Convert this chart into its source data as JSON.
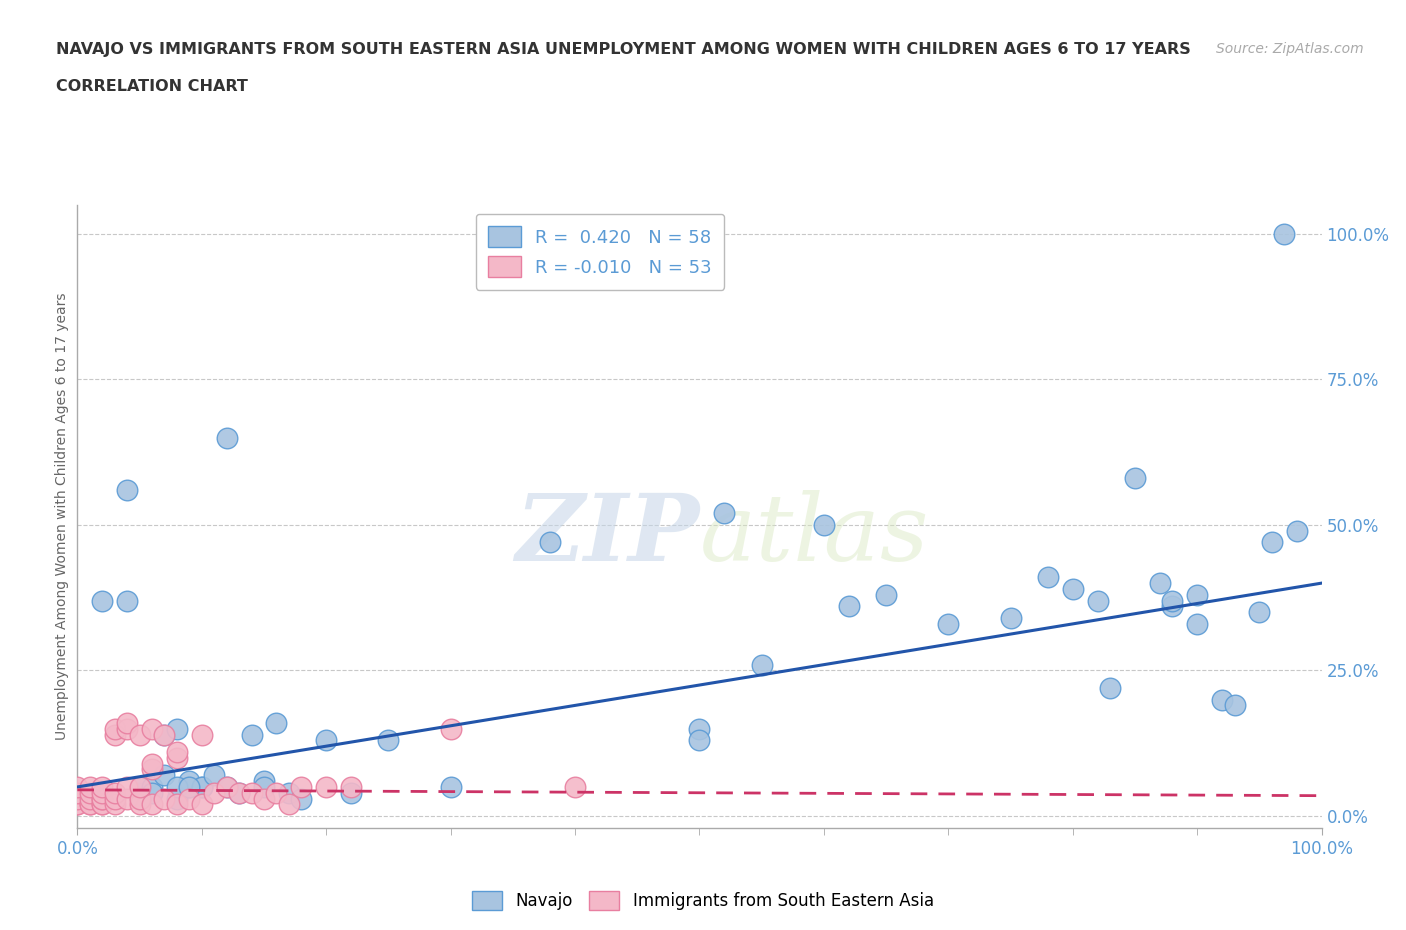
{
  "title_line1": "NAVAJO VS IMMIGRANTS FROM SOUTH EASTERN ASIA UNEMPLOYMENT AMONG WOMEN WITH CHILDREN AGES 6 TO 17 YEARS",
  "title_line2": "CORRELATION CHART",
  "source": "Source: ZipAtlas.com",
  "ylabel": "Unemployment Among Women with Children Ages 6 to 17 years",
  "xlim": [
    0,
    1
  ],
  "ylim": [
    -0.02,
    1.05
  ],
  "xtick_labels": [
    "0.0%",
    "100.0%"
  ],
  "ytick_labels": [
    "0.0%",
    "25.0%",
    "50.0%",
    "75.0%",
    "100.0%"
  ],
  "ytick_positions": [
    0,
    0.25,
    0.5,
    0.75,
    1.0
  ],
  "navajo_R": 0.42,
  "navajo_N": 58,
  "sea_R": -0.01,
  "sea_N": 53,
  "navajo_color": "#a8c4e0",
  "navajo_edge_color": "#5b9bd5",
  "sea_color": "#f4b8c8",
  "sea_edge_color": "#e87fa0",
  "trend_navajo_color": "#2255aa",
  "trend_sea_color": "#cc3366",
  "watermark_zip": "ZIP",
  "watermark_atlas": "atlas",
  "background_color": "#ffffff",
  "grid_color": "#c8c8c8",
  "title_color": "#333333",
  "label_color": "#5b9bd5",
  "navajo_x": [
    0.02,
    0.05,
    0.05,
    0.06,
    0.06,
    0.07,
    0.07,
    0.08,
    0.08,
    0.09,
    0.09,
    0.1,
    0.1,
    0.11,
    0.12,
    0.13,
    0.14,
    0.15,
    0.15,
    0.16,
    0.17,
    0.18,
    0.2,
    0.22,
    0.25,
    0.3,
    0.38,
    0.5,
    0.5,
    0.52,
    0.55,
    0.6,
    0.62,
    0.65,
    0.7,
    0.75,
    0.78,
    0.8,
    0.82,
    0.83,
    0.85,
    0.87,
    0.88,
    0.88,
    0.9,
    0.9,
    0.92,
    0.93,
    0.95,
    0.96,
    0.97,
    0.98,
    0.04,
    0.04,
    0.05,
    0.08,
    0.09,
    0.12
  ],
  "navajo_y": [
    0.37,
    0.04,
    0.05,
    0.05,
    0.04,
    0.07,
    0.14,
    0.15,
    0.03,
    0.05,
    0.06,
    0.05,
    0.05,
    0.07,
    0.65,
    0.04,
    0.14,
    0.06,
    0.05,
    0.16,
    0.04,
    0.03,
    0.13,
    0.04,
    0.13,
    0.05,
    0.47,
    0.15,
    0.13,
    0.52,
    0.26,
    0.5,
    0.36,
    0.38,
    0.33,
    0.34,
    0.41,
    0.39,
    0.37,
    0.22,
    0.58,
    0.4,
    0.36,
    0.37,
    0.33,
    0.38,
    0.2,
    0.19,
    0.35,
    0.47,
    1.0,
    0.49,
    0.37,
    0.56,
    0.03,
    0.05,
    0.05,
    0.05
  ],
  "sea_x": [
    0.0,
    0.0,
    0.0,
    0.0,
    0.0,
    0.01,
    0.01,
    0.01,
    0.01,
    0.01,
    0.02,
    0.02,
    0.02,
    0.02,
    0.02,
    0.02,
    0.03,
    0.03,
    0.03,
    0.03,
    0.03,
    0.04,
    0.04,
    0.04,
    0.04,
    0.05,
    0.05,
    0.05,
    0.05,
    0.06,
    0.06,
    0.06,
    0.06,
    0.07,
    0.07,
    0.08,
    0.08,
    0.08,
    0.09,
    0.1,
    0.1,
    0.11,
    0.12,
    0.13,
    0.14,
    0.15,
    0.16,
    0.17,
    0.18,
    0.2,
    0.22,
    0.3,
    0.4
  ],
  "sea_y": [
    0.02,
    0.02,
    0.03,
    0.04,
    0.05,
    0.02,
    0.02,
    0.03,
    0.04,
    0.05,
    0.02,
    0.02,
    0.03,
    0.03,
    0.04,
    0.05,
    0.02,
    0.03,
    0.04,
    0.14,
    0.15,
    0.03,
    0.05,
    0.15,
    0.16,
    0.02,
    0.03,
    0.05,
    0.14,
    0.02,
    0.08,
    0.09,
    0.15,
    0.03,
    0.14,
    0.02,
    0.1,
    0.11,
    0.03,
    0.02,
    0.14,
    0.04,
    0.05,
    0.04,
    0.04,
    0.03,
    0.04,
    0.02,
    0.05,
    0.05,
    0.05,
    0.15,
    0.05
  ]
}
